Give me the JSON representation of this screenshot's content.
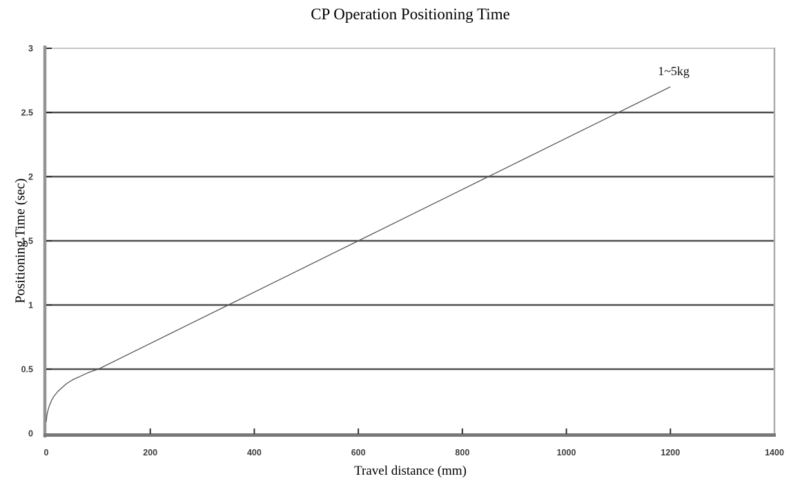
{
  "chart_data": {
    "type": "line",
    "title": "CP Operation Positioning Time",
    "xlabel": "Travel distance (mm)",
    "ylabel": "Positioning Time (sec)",
    "xlim": [
      0,
      1400
    ],
    "ylim": [
      0,
      3
    ],
    "xticks": [
      0,
      200,
      400,
      600,
      800,
      1000,
      1200,
      1400
    ],
    "xtick_labels": [
      "0",
      "200",
      "400",
      "600",
      "800",
      "1000",
      "1200",
      "1400"
    ],
    "yticks": [
      0,
      0.5,
      1,
      1.5,
      2,
      2.5,
      3
    ],
    "ytick_labels": [
      "0",
      "0.5",
      "1",
      "1.5",
      "2",
      "2.5",
      "3"
    ],
    "grid": "horizontal-only",
    "gridline_yvalues": [
      0.5,
      1,
      1.5,
      2,
      2.5
    ],
    "legend_position": "inline-annotation",
    "series": [
      {
        "name": "1~5kg",
        "points": [
          [
            0,
            0.09
          ],
          [
            1,
            0.135
          ],
          [
            3,
            0.175
          ],
          [
            6,
            0.215
          ],
          [
            10,
            0.255
          ],
          [
            15,
            0.29
          ],
          [
            22,
            0.325
          ],
          [
            30,
            0.355
          ],
          [
            40,
            0.39
          ],
          [
            52,
            0.42
          ],
          [
            66,
            0.445
          ],
          [
            82,
            0.475
          ],
          [
            100,
            0.5
          ],
          [
            150,
            0.6
          ],
          [
            200,
            0.7
          ],
          [
            250,
            0.8
          ],
          [
            300,
            0.9
          ],
          [
            350,
            1.0
          ],
          [
            400,
            1.1
          ],
          [
            450,
            1.2
          ],
          [
            500,
            1.3
          ],
          [
            550,
            1.4
          ],
          [
            600,
            1.5
          ],
          [
            650,
            1.6
          ],
          [
            700,
            1.7
          ],
          [
            750,
            1.8
          ],
          [
            800,
            1.9
          ],
          [
            850,
            2.0
          ],
          [
            900,
            2.1
          ],
          [
            950,
            2.2
          ],
          [
            1000,
            2.3
          ],
          [
            1050,
            2.4
          ],
          [
            1100,
            2.5
          ],
          [
            1150,
            2.6
          ],
          [
            1200,
            2.7
          ]
        ]
      }
    ],
    "annotations": [
      {
        "text": "1~5kg",
        "x": 1176,
        "y": 2.79
      }
    ],
    "colors": {
      "background": "#ffffff",
      "gridline": "#4f4f4f",
      "plot_top_border": "#c6c6c6",
      "plot_right_border": "#ababab",
      "x_axis": "#787878",
      "y_axis": "#949494",
      "tick": "#2d2d2d",
      "tick_label": "#3d3d3d",
      "series_line": "#555555",
      "text": "#000000"
    }
  }
}
